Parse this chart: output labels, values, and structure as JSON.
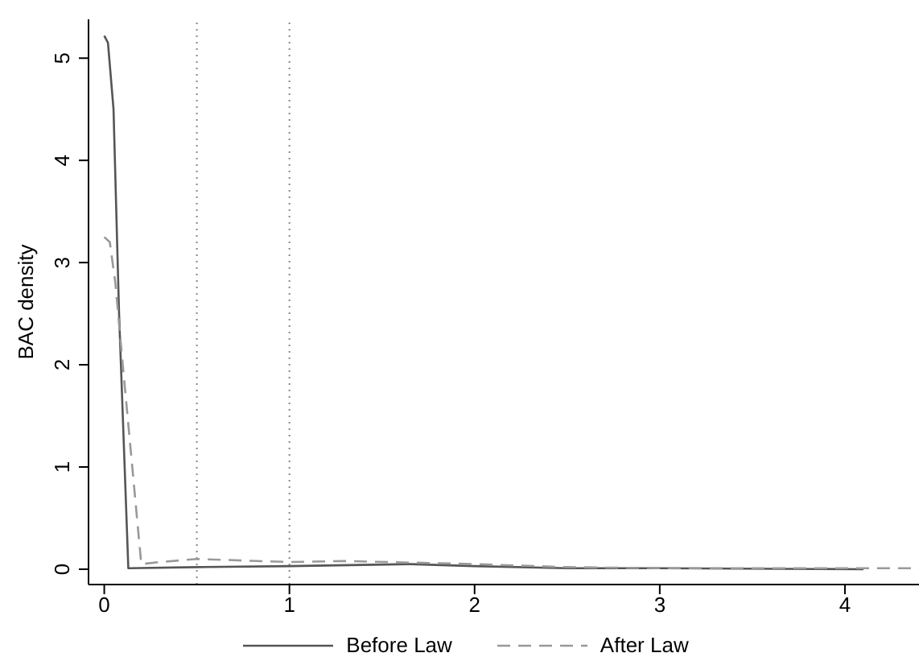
{
  "chart_data": {
    "type": "line",
    "ylabel": "BAC density",
    "xlim": [
      -0.085,
      4.4
    ],
    "xticks": [
      0,
      1,
      2,
      3,
      4
    ],
    "ylim": [
      -0.15,
      5.38
    ],
    "yticks": [
      0,
      1,
      2,
      3,
      4,
      5
    ],
    "grid": false,
    "legend": "bottom",
    "marker": "none",
    "ref_lines": [
      {
        "axis": "x",
        "value": 0.5,
        "color": "#888888",
        "line_style": "dotted"
      },
      {
        "axis": "x",
        "value": 1,
        "color": "#888888",
        "line_style": "dotted"
      }
    ],
    "series": [
      {
        "name": "Before Law",
        "color": "#555555",
        "line_style": "solid",
        "x": [
          0,
          0.02,
          0.05,
          0.08,
          0.13,
          0.5,
          1,
          1.65,
          2,
          2.5,
          3,
          4.1
        ],
        "values": [
          5.22,
          5.15,
          4.5,
          2.5,
          0.01,
          0.02,
          0.03,
          0.05,
          0.03,
          0.01,
          0.01,
          0
        ]
      },
      {
        "name": "After Law",
        "color": "#999999",
        "line_style": "dashed",
        "x": [
          0,
          0.03,
          0.06,
          0.1,
          0.2,
          0.3,
          0.5,
          1,
          1.3,
          2,
          2.5,
          3,
          4.4
        ],
        "values": [
          3.25,
          3.2,
          2.8,
          2,
          0.05,
          0.07,
          0.1,
          0.07,
          0.08,
          0.05,
          0.02,
          0.01,
          0.01
        ]
      }
    ]
  }
}
